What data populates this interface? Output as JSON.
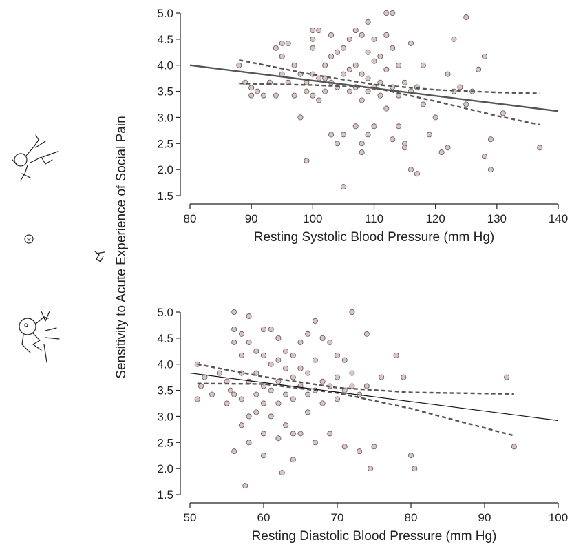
{
  "ylabel": "Sensitivity to Acute Experience of Social Pain",
  "chart_data": [
    {
      "type": "scatter",
      "xlabel": "Resting Systolic Blood Pressure (mm Hg)",
      "ylabel": "Sensitivity to Acute Experience of Social Pain",
      "xlim": [
        80,
        140
      ],
      "ylim": [
        1.5,
        5.0
      ],
      "xticks": [
        80,
        90,
        100,
        110,
        120,
        130,
        140
      ],
      "yticks": [
        1.5,
        2.0,
        2.5,
        3.0,
        3.5,
        4.0,
        4.5,
        5.0
      ],
      "regression": {
        "x": [
          80,
          140
        ],
        "y": [
          4.0,
          3.12
        ]
      },
      "ci_upper": {
        "x": [
          88,
          100,
          110,
          120,
          130,
          137
        ],
        "y": [
          4.1,
          3.82,
          3.63,
          3.53,
          3.48,
          3.46
        ]
      },
      "ci_lower": {
        "x": [
          88,
          100,
          110,
          120,
          130,
          137
        ],
        "y": [
          3.65,
          3.62,
          3.57,
          3.31,
          3.03,
          2.86
        ]
      },
      "points": [
        [
          88,
          4.0
        ],
        [
          89,
          3.67
        ],
        [
          90,
          3.57
        ],
        [
          90,
          3.42
        ],
        [
          91,
          3.5
        ],
        [
          92,
          3.42
        ],
        [
          93,
          3.67
        ],
        [
          94,
          3.42
        ],
        [
          94,
          4.33
        ],
        [
          95,
          4.42
        ],
        [
          95,
          4.17
        ],
        [
          95,
          3.83
        ],
        [
          96,
          4.42
        ],
        [
          96,
          3.67
        ],
        [
          97,
          4.0
        ],
        [
          97,
          3.42
        ],
        [
          98,
          3.83
        ],
        [
          98,
          3.0
        ],
        [
          99,
          3.67
        ],
        [
          99,
          3.5
        ],
        [
          99,
          2.17
        ],
        [
          100,
          4.67
        ],
        [
          100,
          4.5
        ],
        [
          100,
          4.33
        ],
        [
          100,
          3.83
        ],
        [
          100,
          3.42
        ],
        [
          101,
          4.67
        ],
        [
          101,
          3.75
        ],
        [
          101,
          3.33
        ],
        [
          102,
          4.0
        ],
        [
          102,
          3.75
        ],
        [
          102,
          3.5
        ],
        [
          103,
          4.58
        ],
        [
          103,
          4.17
        ],
        [
          103,
          3.67
        ],
        [
          103,
          2.67
        ],
        [
          104,
          4.25
        ],
        [
          104,
          3.58
        ],
        [
          104,
          2.5
        ],
        [
          105,
          4.33
        ],
        [
          105,
          3.83
        ],
        [
          105,
          2.67
        ],
        [
          105,
          1.67
        ],
        [
          106,
          4.5
        ],
        [
          106,
          3.92
        ],
        [
          106,
          3.5
        ],
        [
          107,
          4.67
        ],
        [
          107,
          4.0
        ],
        [
          107,
          3.58
        ],
        [
          107,
          2.83
        ],
        [
          108,
          4.58
        ],
        [
          108,
          3.83
        ],
        [
          108,
          3.33
        ],
        [
          108,
          2.5
        ],
        [
          108,
          2.33
        ],
        [
          109,
          4.83
        ],
        [
          109,
          4.25
        ],
        [
          109,
          3.75
        ],
        [
          109,
          3.5
        ],
        [
          109,
          2.67
        ],
        [
          110,
          4.5
        ],
        [
          110,
          4.08
        ],
        [
          110,
          3.58
        ],
        [
          110,
          2.83
        ],
        [
          111,
          4.17
        ],
        [
          111,
          3.67
        ],
        [
          111,
          3.42
        ],
        [
          112,
          5.0
        ],
        [
          112,
          4.58
        ],
        [
          112,
          3.92
        ],
        [
          112,
          3.17
        ],
        [
          113,
          5.0
        ],
        [
          113,
          4.33
        ],
        [
          113,
          3.58
        ],
        [
          113,
          2.58
        ],
        [
          114,
          4.0
        ],
        [
          114,
          3.42
        ],
        [
          114,
          2.83
        ],
        [
          115,
          3.67
        ],
        [
          115,
          2.5
        ],
        [
          115,
          2.42
        ],
        [
          116,
          4.42
        ],
        [
          116,
          3.5
        ],
        [
          116,
          2.0
        ],
        [
          117,
          3.58
        ],
        [
          117,
          1.92
        ],
        [
          118,
          4.0
        ],
        [
          118,
          3.25
        ],
        [
          119,
          2.67
        ],
        [
          120,
          3.0
        ],
        [
          121,
          2.33
        ],
        [
          122,
          3.83
        ],
        [
          122,
          2.42
        ],
        [
          123,
          4.5
        ],
        [
          123,
          3.5
        ],
        [
          124,
          3.58
        ],
        [
          125,
          4.92
        ],
        [
          125,
          3.25
        ],
        [
          126,
          3.5
        ],
        [
          127,
          3.92
        ],
        [
          128,
          4.17
        ],
        [
          128,
          2.25
        ],
        [
          129,
          2.58
        ],
        [
          129,
          2.0
        ],
        [
          131,
          3.08
        ],
        [
          137,
          2.42
        ]
      ]
    },
    {
      "type": "scatter",
      "xlabel": "Resting Diastolic Blood Pressure (mm Hg)",
      "ylabel": "Sensitivity to Acute Experience of Social Pain",
      "xlim": [
        50,
        100
      ],
      "ylim": [
        1.5,
        5.0
      ],
      "xticks": [
        50,
        60,
        70,
        80,
        90,
        100
      ],
      "yticks": [
        1.5,
        2.0,
        2.5,
        3.0,
        3.5,
        4.0,
        4.5,
        5.0
      ],
      "regression": {
        "x": [
          50,
          100
        ],
        "y": [
          3.83,
          2.92
        ]
      },
      "ci_upper": {
        "x": [
          51,
          60,
          70,
          80,
          94
        ],
        "y": [
          4.0,
          3.76,
          3.55,
          3.46,
          3.43
        ]
      },
      "ci_lower": {
        "x": [
          51,
          60,
          70,
          80,
          94
        ],
        "y": [
          3.63,
          3.62,
          3.45,
          3.15,
          2.63
        ]
      },
      "points": [
        [
          51,
          4.0
        ],
        [
          51,
          3.33
        ],
        [
          51.5,
          3.58
        ],
        [
          52,
          3.75
        ],
        [
          53,
          3.42
        ],
        [
          54,
          3.83
        ],
        [
          55,
          3.67
        ],
        [
          55,
          3.25
        ],
        [
          55.5,
          3.5
        ],
        [
          56,
          5.0
        ],
        [
          56,
          4.67
        ],
        [
          56,
          4.42
        ],
        [
          56,
          3.42
        ],
        [
          56,
          2.33
        ],
        [
          57,
          4.58
        ],
        [
          57,
          4.17
        ],
        [
          57,
          3.83
        ],
        [
          57,
          3.33
        ],
        [
          57,
          2.83
        ],
        [
          57.5,
          1.67
        ],
        [
          58,
          4.92
        ],
        [
          58,
          4.42
        ],
        [
          58,
          3.67
        ],
        [
          58,
          3.0
        ],
        [
          58,
          2.5
        ],
        [
          59,
          4.25
        ],
        [
          59,
          3.83
        ],
        [
          59,
          3.42
        ],
        [
          59,
          3.08
        ],
        [
          60,
          4.67
        ],
        [
          60,
          4.17
        ],
        [
          60,
          3.58
        ],
        [
          60,
          3.25
        ],
        [
          60,
          2.67
        ],
        [
          60,
          2.25
        ],
        [
          61,
          4.67
        ],
        [
          61,
          4.0
        ],
        [
          61,
          3.5
        ],
        [
          61,
          3.0
        ],
        [
          62,
          4.5
        ],
        [
          62,
          4.08
        ],
        [
          62,
          3.67
        ],
        [
          62,
          3.25
        ],
        [
          62,
          2.58
        ],
        [
          62.5,
          1.92
        ],
        [
          63,
          4.25
        ],
        [
          63,
          3.92
        ],
        [
          63,
          3.42
        ],
        [
          63,
          2.83
        ],
        [
          64,
          4.17
        ],
        [
          64,
          3.75
        ],
        [
          64,
          3.33
        ],
        [
          64,
          2.67
        ],
        [
          64,
          2.17
        ],
        [
          65,
          4.42
        ],
        [
          65,
          3.92
        ],
        [
          65,
          3.58
        ],
        [
          65,
          2.67
        ],
        [
          66,
          4.58
        ],
        [
          66,
          3.83
        ],
        [
          66,
          3.42
        ],
        [
          66,
          3.08
        ],
        [
          67,
          4.83
        ],
        [
          67,
          4.08
        ],
        [
          67,
          3.5
        ],
        [
          67,
          2.5
        ],
        [
          68,
          4.5
        ],
        [
          68,
          3.67
        ],
        [
          68,
          3.25
        ],
        [
          69,
          4.42
        ],
        [
          69,
          3.58
        ],
        [
          69,
          2.67
        ],
        [
          70,
          4.17
        ],
        [
          70,
          3.75
        ],
        [
          70,
          3.33
        ],
        [
          71,
          4.08
        ],
        [
          71,
          3.5
        ],
        [
          71,
          2.42
        ],
        [
          72,
          5.0
        ],
        [
          72,
          3.83
        ],
        [
          72,
          3.58
        ],
        [
          73,
          3.42
        ],
        [
          73,
          2.33
        ],
        [
          74,
          4.58
        ],
        [
          74,
          3.58
        ],
        [
          75,
          2.42
        ],
        [
          76,
          3.75
        ],
        [
          78,
          4.17
        ],
        [
          79,
          3.75
        ],
        [
          80,
          2.25
        ],
        [
          80.5,
          2.0
        ],
        [
          93,
          3.75
        ],
        [
          94,
          2.42
        ],
        [
          74.5,
          2.0
        ]
      ]
    }
  ]
}
